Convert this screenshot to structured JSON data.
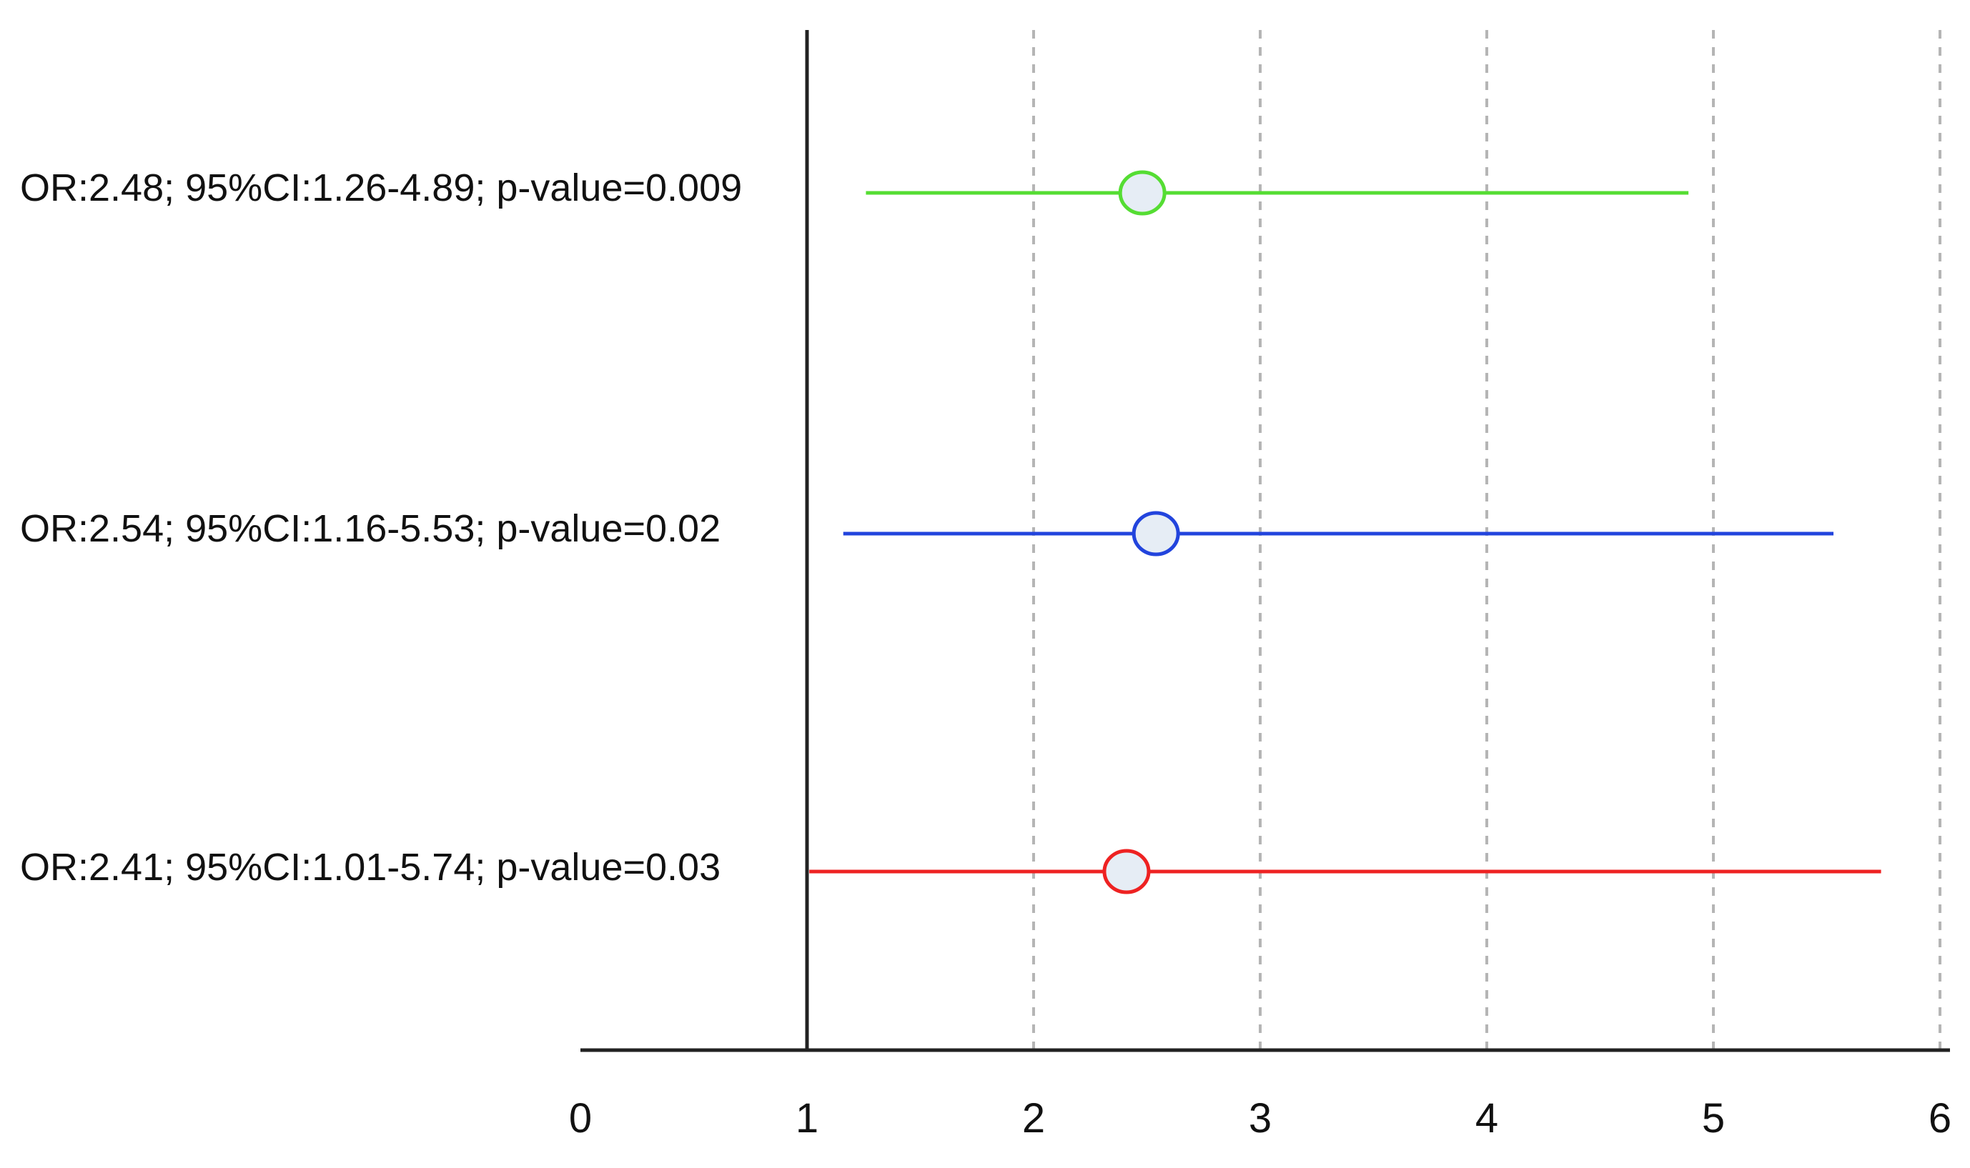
{
  "chart_data": {
    "type": "forest",
    "title": "",
    "xlabel": "",
    "ylabel": "",
    "xlim": [
      0,
      6
    ],
    "reference_line": 1,
    "x_ticks": [
      "0",
      "1",
      "2",
      "3",
      "4",
      "5",
      "6"
    ],
    "vertical_grid": "dashed",
    "series": [
      {
        "label": "OR:2.48; 95%CI:1.26-4.89; p-value=0.009",
        "or": 2.48,
        "ci_low": 1.26,
        "ci_high": 4.89,
        "color": "#55dd33"
      },
      {
        "label": "OR:2.54; 95%CI:1.16-5.53; p-value=0.02",
        "or": 2.54,
        "ci_low": 1.16,
        "ci_high": 5.53,
        "color": "#2244dd"
      },
      {
        "label": "OR:2.41; 95%CI:1.01-5.74; p-value=0.03",
        "or": 2.41,
        "ci_low": 1.01,
        "ci_high": 5.74,
        "color": "#ee2222"
      }
    ],
    "marker_fill": "#e6edf5"
  }
}
